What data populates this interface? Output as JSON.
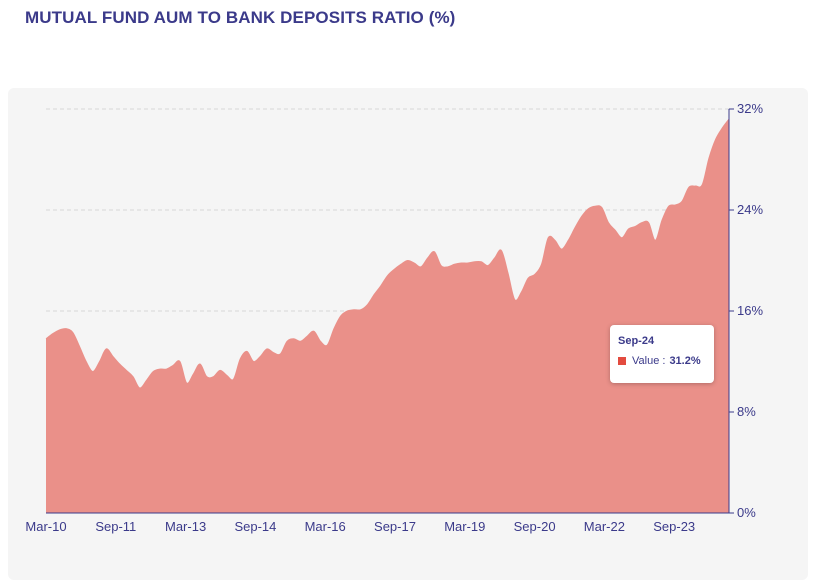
{
  "chart_data": {
    "type": "area",
    "title": "MUTUAL FUND AUM TO BANK DEPOSITS RATIO (%)",
    "x_tick_labels": [
      "Mar-10",
      "Sep-11",
      "Mar-13",
      "Sep-14",
      "Mar-16",
      "Sep-17",
      "Mar-19",
      "Sep-20",
      "Mar-22",
      "Sep-23"
    ],
    "y_ticks": [
      "0%",
      "8%",
      "16%",
      "24%",
      "32%"
    ],
    "ylim": [
      0,
      32
    ],
    "y_axis_side": "right",
    "grid": "horizontal dashed",
    "colors": {
      "fill": "#ea9089",
      "stroke": "#e34b3f",
      "axis": "#3b3a8a"
    },
    "series": [
      {
        "values": [
          13.8,
          14.2,
          14.5,
          14.6,
          14.3,
          13.2,
          12.0,
          11.2,
          12.0,
          13.0,
          12.4,
          11.8,
          11.3,
          10.8,
          9.9,
          10.5,
          11.2,
          11.4,
          11.4,
          11.7,
          12.0,
          10.3,
          11.0,
          11.8,
          10.8,
          10.8,
          11.3,
          10.9,
          10.6,
          12.2,
          12.8,
          12.0,
          12.4,
          13.0,
          12.7,
          12.6,
          13.6,
          13.8,
          13.6,
          14.0,
          14.4,
          13.6,
          13.3,
          14.6,
          15.6,
          16.0,
          16.1,
          16.1,
          16.5,
          17.3,
          18.0,
          18.8,
          19.3,
          19.7,
          20.0,
          19.8,
          19.5,
          20.2,
          20.7,
          19.6,
          19.5,
          19.7,
          19.8,
          19.8,
          19.9,
          19.9,
          19.6,
          20.2,
          20.8,
          19.0,
          16.9,
          17.5,
          18.6,
          18.9,
          19.7,
          21.8,
          21.6,
          20.9,
          21.6,
          22.6,
          23.5,
          24.1,
          24.3,
          24.2,
          23.0,
          22.4,
          21.8,
          22.5,
          22.7,
          23.0,
          23.0,
          21.6,
          23.2,
          24.3,
          24.4,
          24.7,
          25.8,
          25.9,
          26.0,
          28.1,
          29.6,
          30.5,
          31.2
        ]
      }
    ]
  },
  "tooltip": {
    "title": "Sep-24",
    "label": "Value :",
    "value": "31.2%"
  }
}
